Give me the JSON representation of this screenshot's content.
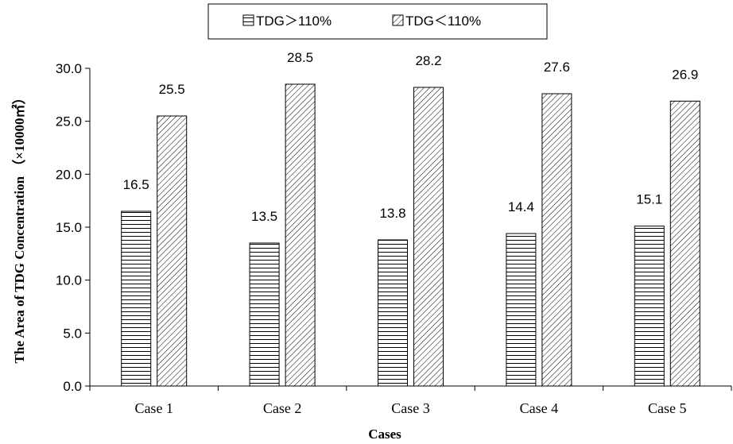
{
  "chart_data": {
    "type": "bar",
    "title": "",
    "xlabel": "Cases",
    "ylabel": "The Area of TDG Concentration （×10000㎡）",
    "categories": [
      "Case 1",
      "Case 2",
      "Case 3",
      "Case 4",
      "Case 5"
    ],
    "ylim": [
      0,
      30
    ],
    "yticks": [
      "0.0",
      "5.0",
      "10.0",
      "15.0",
      "20.0",
      "25.0",
      "30.0"
    ],
    "grid": false,
    "legend_position": "top",
    "series": [
      {
        "name": "TDG＞110%",
        "pattern": "horizontal-lines",
        "values": [
          16.5,
          13.5,
          13.8,
          14.4,
          15.1
        ],
        "labels": [
          "16.5",
          "13.5",
          "13.8",
          "14.4",
          "15.1"
        ]
      },
      {
        "name": "TDG＜110%",
        "pattern": "diagonal-lines",
        "values": [
          25.5,
          28.5,
          28.2,
          27.6,
          26.9
        ],
        "labels": [
          "25.5",
          "28.5",
          "28.2",
          "27.6",
          "26.9"
        ]
      }
    ]
  }
}
